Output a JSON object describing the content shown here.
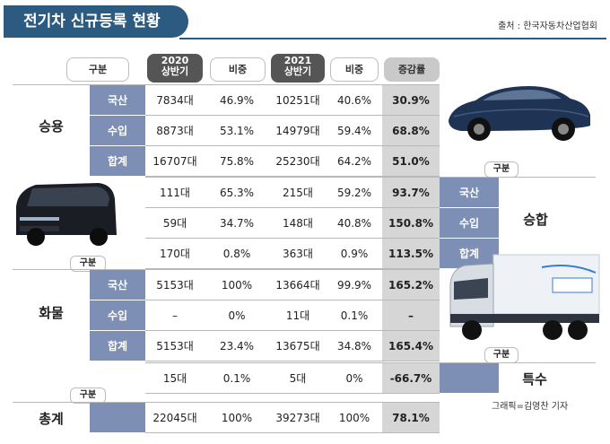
{
  "title": "전기차 신규등록 현황",
  "source": "출처 : 한국자동차산업협회",
  "credit": "그래픽=김영찬 기자",
  "headers": {
    "gubun": "구분",
    "y2020_line1": "2020",
    "y2020_line2": "상반기",
    "share": "비중",
    "y2021_line1": "2021",
    "y2021_line2": "상반기",
    "share2": "비중",
    "growth": "증감률"
  },
  "sections": {
    "passenger": {
      "label": "승용",
      "rows": [
        {
          "sub": "국산",
          "v2020": "7834대",
          "s2020": "46.9%",
          "v2021": "10251대",
          "s2021": "40.6%",
          "growth": "30.9%"
        },
        {
          "sub": "수입",
          "v2020": "8873대",
          "s2020": "53.1%",
          "v2021": "14979대",
          "s2021": "59.4%",
          "growth": "68.8%"
        },
        {
          "sub": "합계",
          "v2020": "16707대",
          "s2020": "75.8%",
          "v2021": "25230대",
          "s2021": "64.2%",
          "growth": "51.0%"
        }
      ]
    },
    "van": {
      "label": "승합",
      "gubun": "구분",
      "rows": [
        {
          "sub": "국산",
          "v2020": "111대",
          "s2020": "65.3%",
          "v2021": "215대",
          "s2021": "59.2%",
          "growth": "93.7%"
        },
        {
          "sub": "수입",
          "v2020": "59대",
          "s2020": "34.7%",
          "v2021": "148대",
          "s2021": "40.8%",
          "growth": "150.8%"
        },
        {
          "sub": "합계",
          "v2020": "170대",
          "s2020": "0.8%",
          "v2021": "363대",
          "s2021": "0.9%",
          "growth": "113.5%"
        }
      ]
    },
    "truck": {
      "label": "화물",
      "gubun": "구분",
      "rows": [
        {
          "sub": "국산",
          "v2020": "5153대",
          "s2020": "100%",
          "v2021": "13664대",
          "s2021": "99.9%",
          "growth": "165.2%"
        },
        {
          "sub": "수입",
          "v2020": "–",
          "s2020": "0%",
          "v2021": "11대",
          "s2021": "0.1%",
          "growth": "–"
        },
        {
          "sub": "합계",
          "v2020": "5153대",
          "s2020": "23.4%",
          "v2021": "13675대",
          "s2021": "34.8%",
          "growth": "165.4%"
        }
      ]
    },
    "special": {
      "label": "특수",
      "gubun": "구분",
      "row": {
        "v2020": "15대",
        "s2020": "0.1%",
        "v2021": "5대",
        "s2021": "0%",
        "growth": "-66.7%"
      }
    },
    "total": {
      "label": "총계",
      "gubun": "구분",
      "row": {
        "v2020": "22045대",
        "s2020": "100%",
        "v2021": "39273대",
        "s2021": "100%",
        "growth": "78.1%"
      }
    }
  },
  "colors": {
    "title_bg": "#2c5a80",
    "sub_bg": "#7d8fb4",
    "growth_bg": "#d6d6d6",
    "header_dark": "#555555"
  }
}
